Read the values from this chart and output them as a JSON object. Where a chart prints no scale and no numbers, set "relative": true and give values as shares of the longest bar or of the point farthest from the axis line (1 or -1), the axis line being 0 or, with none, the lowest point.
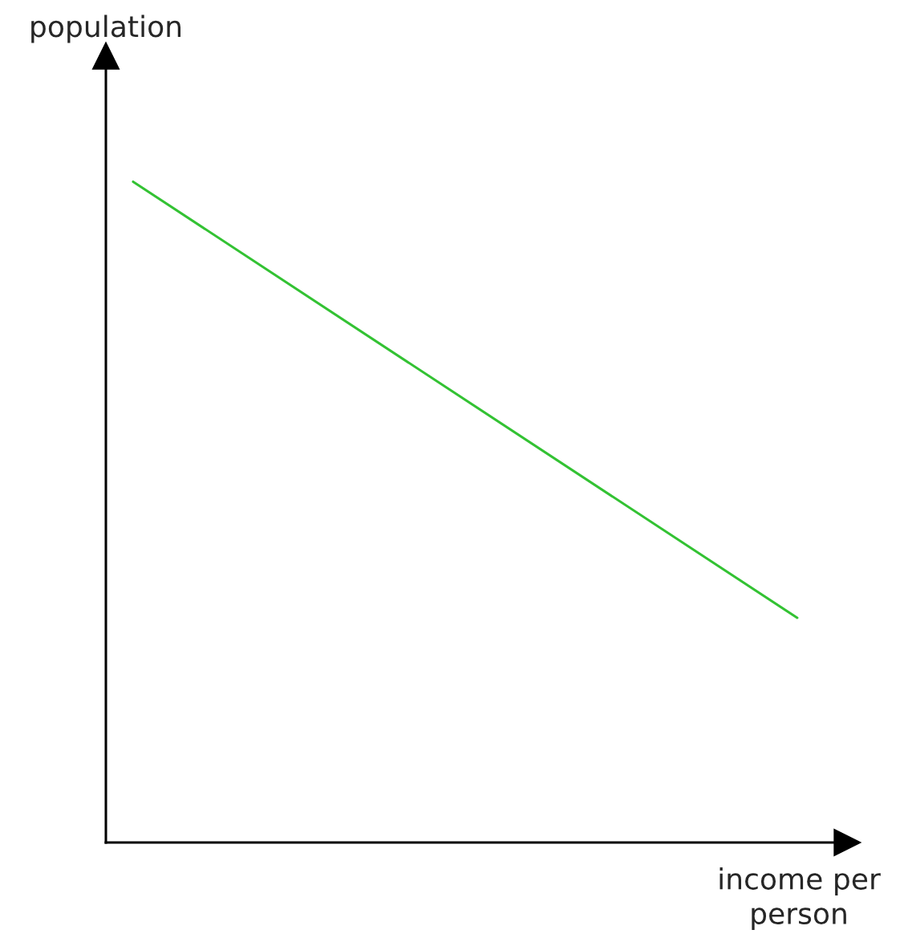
{
  "chart_data": {
    "type": "line",
    "relative": true,
    "xlabel": "income per person",
    "ylabel": "population",
    "categories": [
      null,
      null
    ],
    "series": [
      {
        "color": "#33c233",
        "values": [
          1,
          0.34
        ]
      }
    ]
  }
}
